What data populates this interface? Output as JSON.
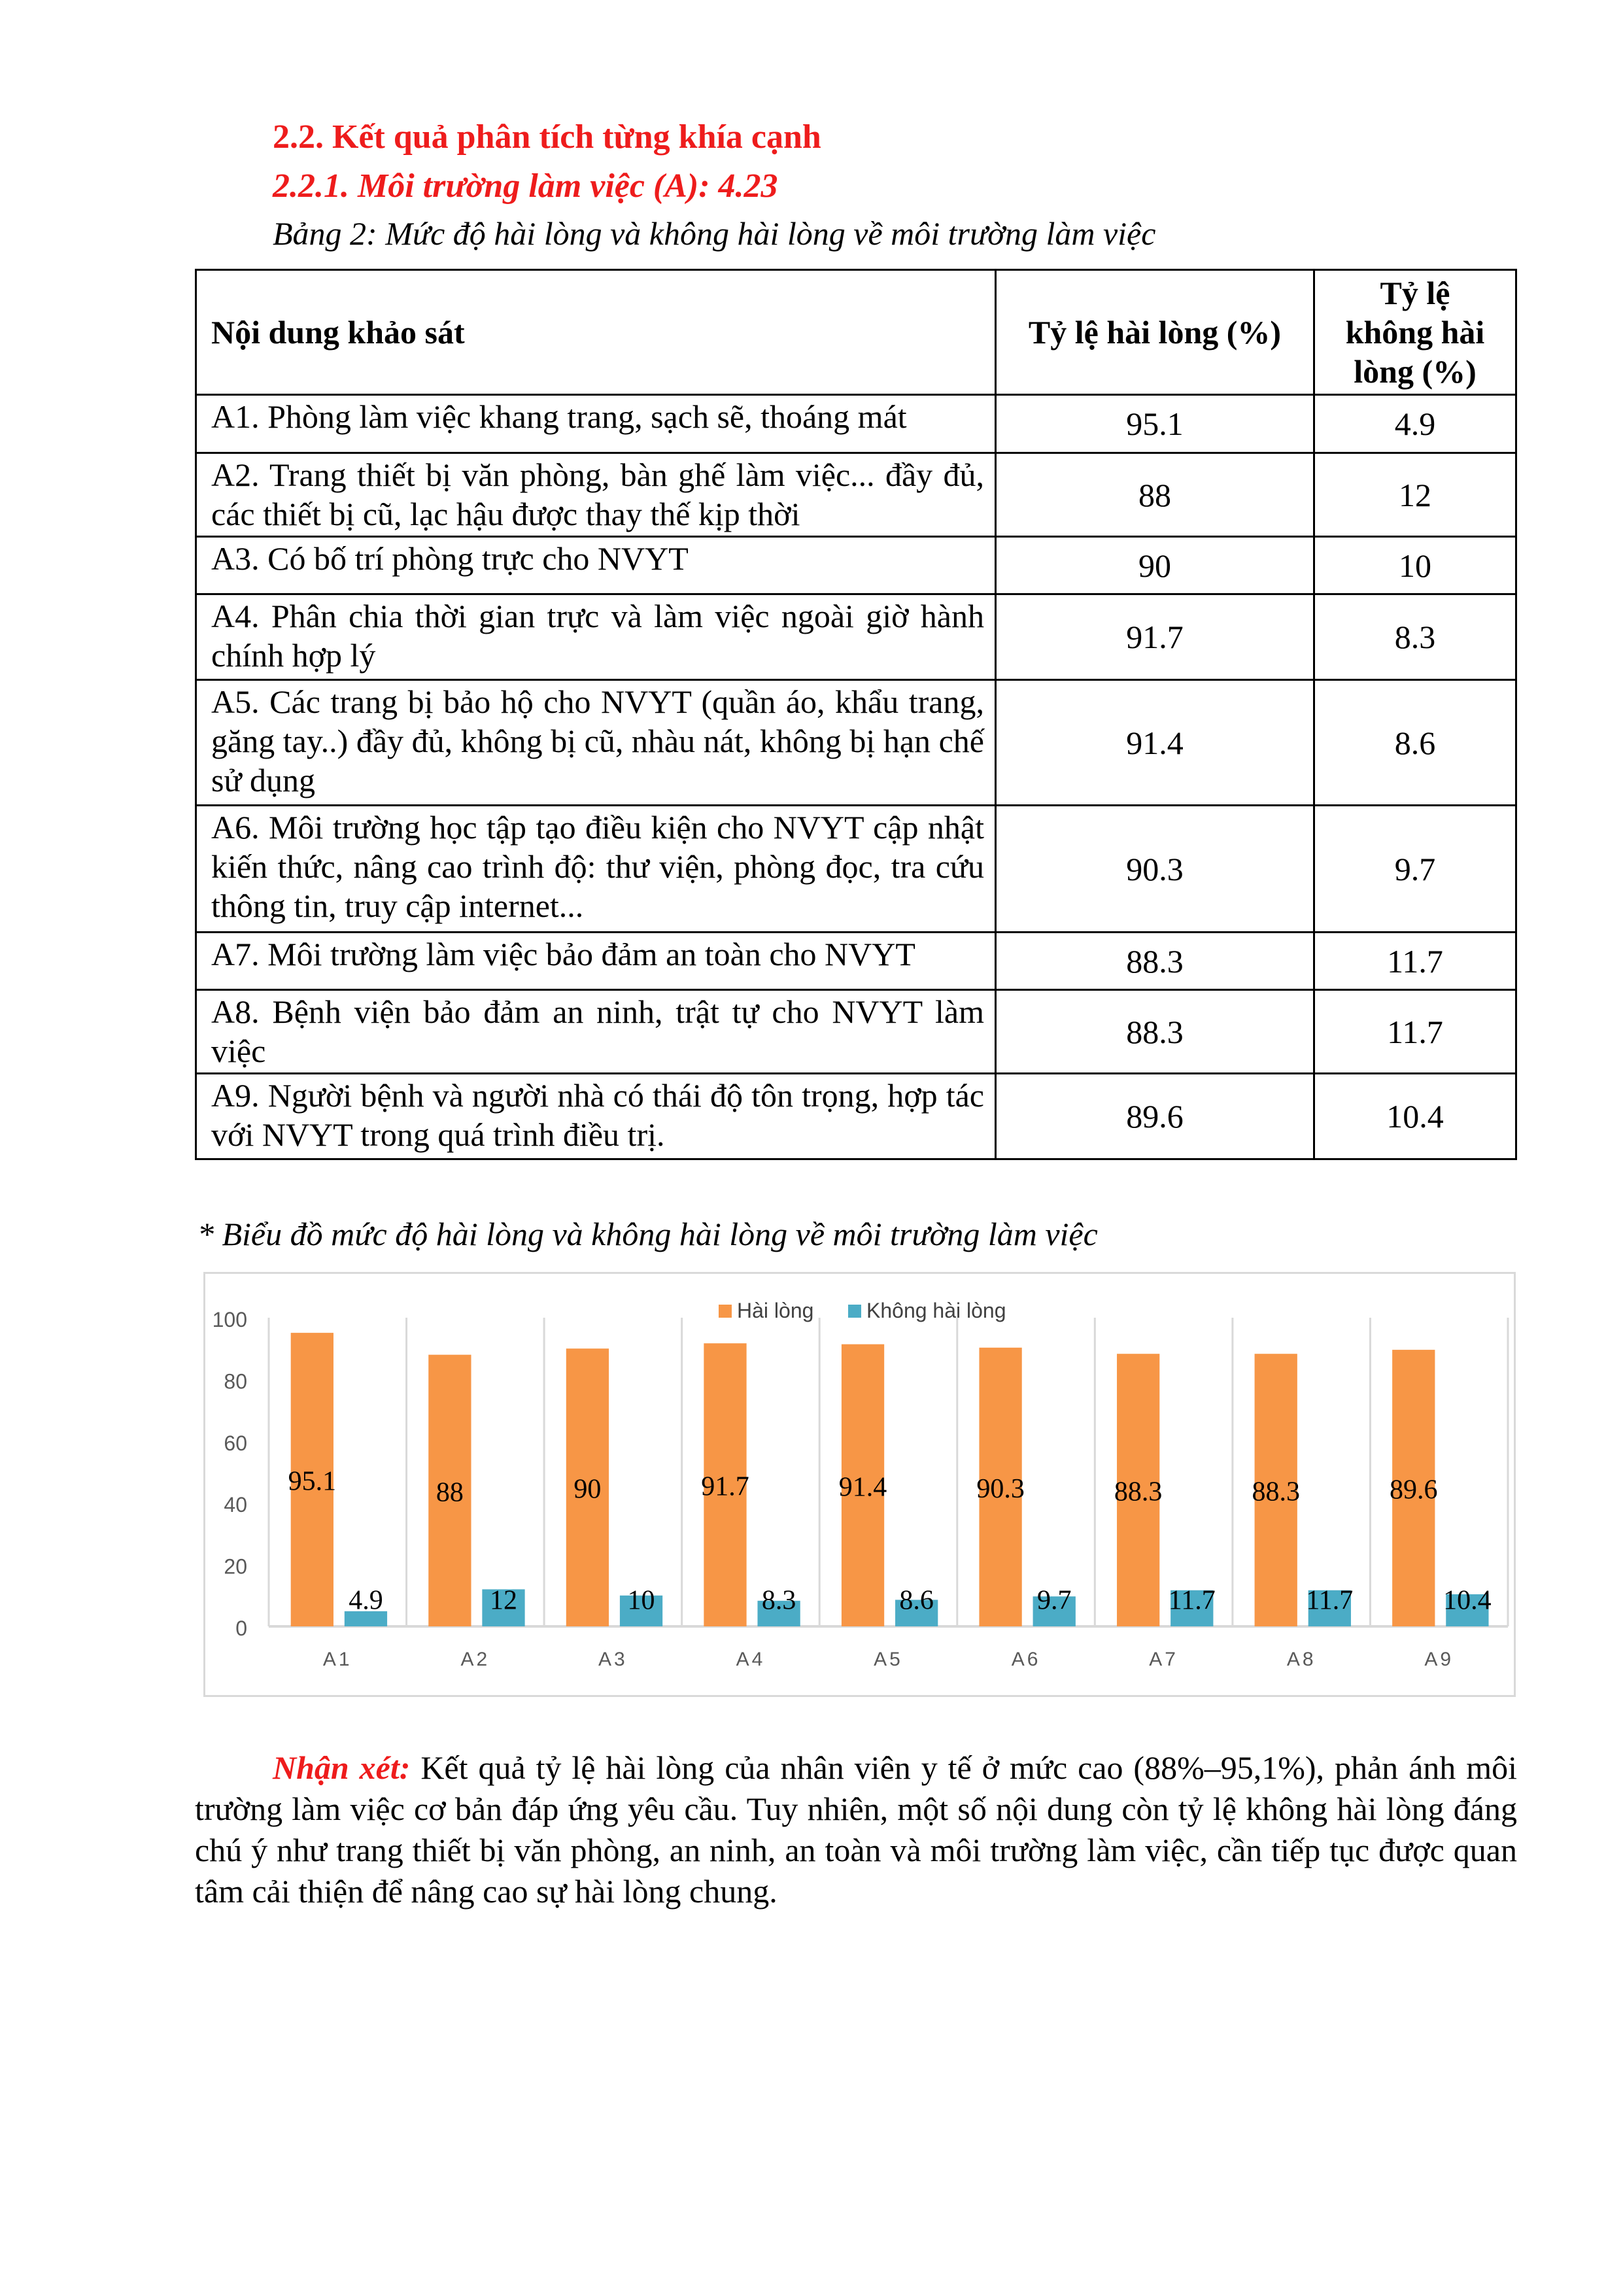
{
  "heading": "2.2. Kết quả phân tích từng khía cạnh",
  "subheading": "2.2.1. Môi trường làm việc (A): 4.23",
  "table_caption": "Bảng 2: Mức độ hài lòng và không hài lòng về môi trường làm việc",
  "table": {
    "headers": [
      "Nội dung khảo sát",
      "Tỷ lệ hài lòng (%)",
      "Tỷ lệ không hài lòng (%)"
    ],
    "rows": [
      {
        "content": "A1. Phòng làm việc khang trang, sạch sẽ, thoáng mát",
        "satisfied": "95.1",
        "unsatisfied": "4.9"
      },
      {
        "content": "A2. Trang thiết bị văn phòng, bàn ghế làm việc... đầy đủ, các thiết bị cũ, lạc hậu được thay thế kịp thời",
        "satisfied": "88",
        "unsatisfied": "12"
      },
      {
        "content": "A3. Có bố trí phòng trực cho NVYT",
        "satisfied": "90",
        "unsatisfied": "10"
      },
      {
        "content": "A4. Phân chia thời gian trực và làm việc ngoài giờ hành chính hợp lý",
        "satisfied": "91.7",
        "unsatisfied": "8.3"
      },
      {
        "content": "A5. Các trang bị bảo hộ cho NVYT (quần áo, khẩu trang, găng tay..) đầy đủ, không bị cũ, nhàu nát, không bị hạn chế sử dụng",
        "satisfied": "91.4",
        "unsatisfied": "8.6"
      },
      {
        "content": "A6. Môi trường học tập tạo điều kiện cho NVYT cập nhật kiến thức, nâng cao trình độ: thư viện, phòng đọc, tra cứu thông tin, truy cập internet...",
        "satisfied": "90.3",
        "unsatisfied": "9.7"
      },
      {
        "content": "A7. Môi trường làm việc bảo đảm an toàn cho NVYT",
        "satisfied": "88.3",
        "unsatisfied": "11.7"
      },
      {
        "content": "A8. Bệnh viện bảo đảm an ninh, trật tự cho NVYT làm việc",
        "satisfied": "88.3",
        "unsatisfied": "11.7"
      },
      {
        "content": "A9. Người bệnh và người nhà có thái độ tôn trọng, hợp tác với NVYT trong quá trình điều trị.",
        "satisfied": "89.6",
        "unsatisfied": "10.4"
      }
    ]
  },
  "chart_caption": "* Biểu đồ mức độ hài lòng và không  hài lòng về môi trường làm việc",
  "chart_data": {
    "type": "bar",
    "categories": [
      "A1",
      "A2",
      "A3",
      "A4",
      "A5",
      "A6",
      "A7",
      "A8",
      "A9"
    ],
    "series": [
      {
        "name": "Hài lòng",
        "color": "#f79646",
        "values": [
          95.1,
          88,
          90,
          91.7,
          91.4,
          90.3,
          88.3,
          88.3,
          89.6
        ]
      },
      {
        "name": "Không hài lòng",
        "color": "#4bacc6",
        "values": [
          4.9,
          12,
          10,
          8.3,
          8.6,
          9.7,
          11.7,
          11.7,
          10.4
        ]
      }
    ],
    "ylim": [
      0,
      100
    ],
    "yticks": [
      0,
      20,
      40,
      60,
      80,
      100
    ],
    "legend": "top-center",
    "grid": "vertical category separators",
    "data_labels": true
  },
  "comment": {
    "label": "Nhận xét:",
    "text": " Kết quả tỷ lệ hài lòng của nhân viên y tế ở mức cao (88%–95,1%), phản ánh môi trường làm việc cơ bản đáp ứng yêu cầu. Tuy nhiên, một số nội dung còn tỷ lệ không hài lòng đáng chú ý như trang thiết bị văn phòng, an ninh, an toàn và môi trường làm việc, cần tiếp tục được quan tâm cải thiện để nâng cao sự hài lòng chung."
  }
}
